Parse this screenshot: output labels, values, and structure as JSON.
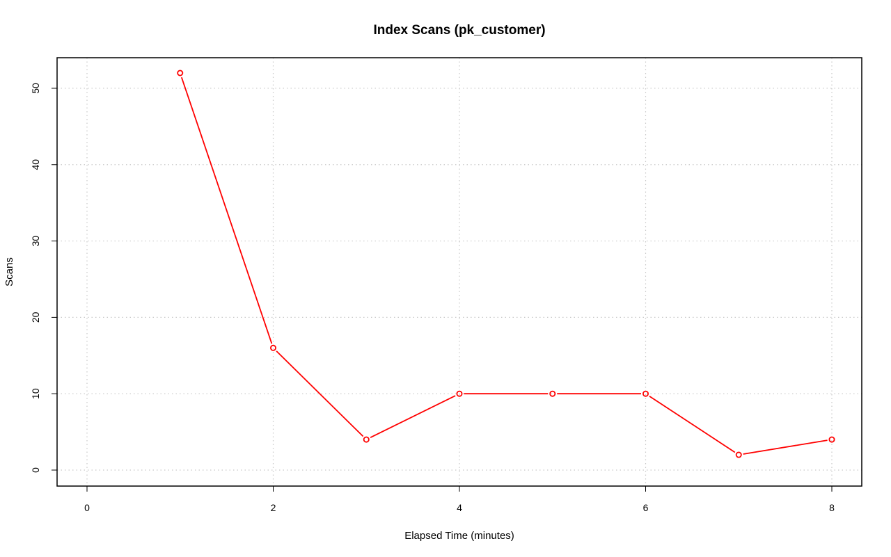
{
  "chart_data": {
    "type": "line",
    "title": "Index Scans (pk_customer)",
    "xlabel": "Elapsed Time (minutes)",
    "ylabel": "Scans",
    "xlim": [
      0,
      8
    ],
    "ylim": [
      0,
      52
    ],
    "x_ticks": [
      0,
      2,
      4,
      6,
      8
    ],
    "y_ticks": [
      0,
      10,
      20,
      30,
      40,
      50
    ],
    "grid": true,
    "series": [
      {
        "color": "#ff0000",
        "x": [
          1,
          2,
          3,
          4,
          5,
          6,
          7,
          8
        ],
        "y": [
          52,
          16,
          4,
          10,
          10,
          10,
          2,
          4
        ]
      }
    ]
  }
}
